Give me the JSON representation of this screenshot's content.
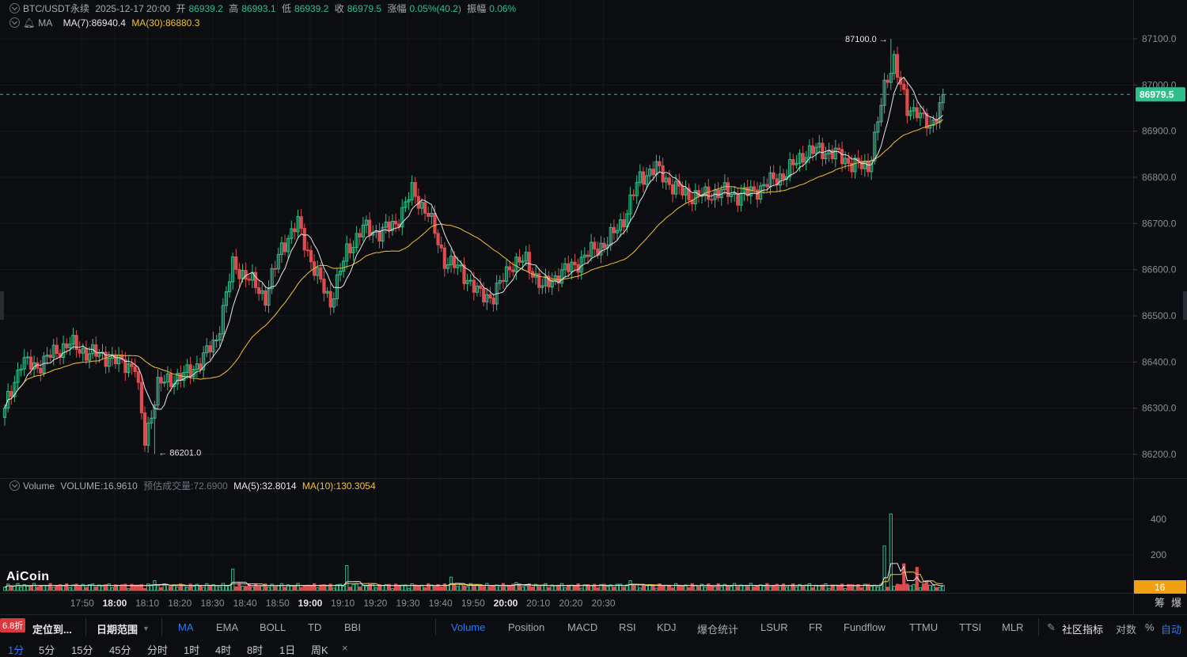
{
  "header": {
    "symbol": "BTC/USDT永续",
    "datetime": "2025-12-17 20:00",
    "open_label": "开",
    "open": "86939.2",
    "high_label": "高",
    "high": "86993.1",
    "low_label": "低",
    "low": "86939.2",
    "close_label": "收",
    "close": "86979.5",
    "change_label": "涨幅",
    "change": "0.05%(40.2)",
    "amp_label": "振幅",
    "amp": "0.06%"
  },
  "ma_line": {
    "prefix": "MA",
    "ma7": "MA(7):86940.4",
    "ma30": "MA(30):86880.3"
  },
  "volume_line": {
    "label": "Volume",
    "volume": "VOLUME:16.9610",
    "est": "预估成交量:72.6900",
    "ma5": "MA(5):32.8014",
    "ma10": "MA(10):130.3054"
  },
  "logo": "AiCoin",
  "badge": "6.8折",
  "toolbar": {
    "locate": "定位到...",
    "date_range": "日期范围",
    "items": [
      "MA",
      "EMA",
      "BOLL",
      "TD",
      "BBI",
      "Volume",
      "Position",
      "MACD",
      "RSI",
      "KDJ",
      "爆仓统计",
      "LSUR",
      "FR",
      "Fundflow",
      "TTMU",
      "TTSI",
      "MLR",
      "社区指标",
      "对数",
      "%",
      "自动"
    ]
  },
  "timeframes": [
    "1分",
    "5分",
    "15分",
    "45分",
    "分时",
    "1时",
    "4时",
    "8时",
    "1日",
    "周K",
    "×"
  ],
  "colors": {
    "up": "#2fbf8a",
    "down": "#e04b4f",
    "ma7": "#e6e6e6",
    "ma30": "#f0c23a",
    "last_price_bg": "#2fbf8a",
    "vol_label_bg": "#f0a010"
  },
  "chart_data": {
    "type": "candlestick",
    "interval": "1m",
    "price_axis_ticks": [
      86200,
      86300,
      86400,
      86500,
      86600,
      86700,
      86800,
      86900,
      87000,
      87100
    ],
    "ylim": [
      86160,
      87160
    ],
    "volume_axis_ticks": [
      200,
      400
    ],
    "volume_ylim": [
      0,
      480
    ],
    "time_ticks": [
      "17:50",
      "18:00",
      "18:10",
      "18:20",
      "18:30",
      "18:40",
      "18:50",
      "19:00",
      "19:10",
      "19:20",
      "19:30",
      "19:40",
      "19:50",
      "20:00",
      "20:10",
      "20:20",
      "20:30"
    ],
    "last_price": "86979.5",
    "last_volume_label": "16",
    "high_marker": "87100.0",
    "low_marker": "86201.0",
    "series": [
      {
        "name": "MA(7)",
        "current": "86940.4"
      },
      {
        "name": "MA(30)",
        "current": "86880.3"
      }
    ],
    "anchors_close": [
      [
        0,
        86300
      ],
      [
        5,
        86400
      ],
      [
        10,
        86390
      ],
      [
        15,
        86420
      ],
      [
        20,
        86440
      ],
      [
        25,
        86420
      ],
      [
        30,
        86415
      ],
      [
        35,
        86400
      ],
      [
        40,
        86390
      ],
      [
        43,
        86230
      ],
      [
        47,
        86350
      ],
      [
        50,
        86360
      ],
      [
        55,
        86370
      ],
      [
        60,
        86400
      ],
      [
        65,
        86450
      ],
      [
        70,
        86610
      ],
      [
        75,
        86580
      ],
      [
        80,
        86540
      ],
      [
        85,
        86650
      ],
      [
        90,
        86700
      ],
      [
        95,
        86600
      ],
      [
        100,
        86530
      ],
      [
        105,
        86640
      ],
      [
        110,
        86690
      ],
      [
        115,
        86680
      ],
      [
        120,
        86700
      ],
      [
        125,
        86770
      ],
      [
        130,
        86720
      ],
      [
        135,
        86620
      ],
      [
        140,
        86600
      ],
      [
        145,
        86550
      ],
      [
        150,
        86540
      ],
      [
        155,
        86610
      ],
      [
        160,
        86620
      ],
      [
        165,
        86560
      ],
      [
        170,
        86590
      ],
      [
        175,
        86610
      ],
      [
        180,
        86640
      ],
      [
        185,
        86660
      ],
      [
        190,
        86710
      ],
      [
        195,
        86800
      ],
      [
        200,
        86820
      ],
      [
        205,
        86780
      ],
      [
        210,
        86760
      ],
      [
        215,
        86760
      ],
      [
        220,
        86770
      ],
      [
        225,
        86760
      ],
      [
        230,
        86770
      ],
      [
        235,
        86790
      ],
      [
        240,
        86810
      ],
      [
        245,
        86850
      ],
      [
        250,
        86860
      ],
      [
        255,
        86850
      ],
      [
        260,
        86830
      ],
      [
        265,
        86820
      ],
      [
        270,
        86990
      ],
      [
        273,
        87060
      ],
      [
        277,
        86940
      ],
      [
        280,
        86950
      ],
      [
        284,
        86900
      ],
      [
        288,
        86979
      ]
    ],
    "volume_spikes": [
      [
        46,
        55
      ],
      [
        70,
        120
      ],
      [
        105,
        140
      ],
      [
        137,
        75
      ],
      [
        157,
        45
      ],
      [
        192,
        55
      ],
      [
        270,
        250
      ],
      [
        272,
        430
      ],
      [
        276,
        150
      ],
      [
        280,
        130
      ],
      [
        283,
        50
      ],
      [
        287,
        17
      ]
    ]
  }
}
